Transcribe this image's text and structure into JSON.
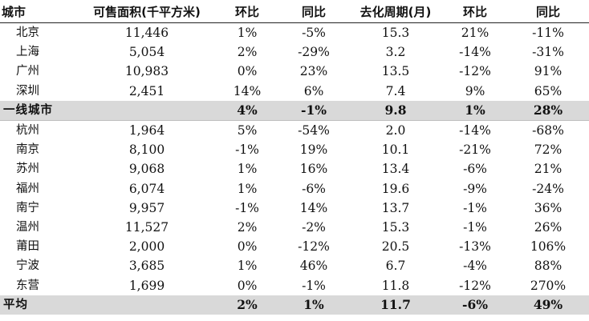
{
  "headers": {
    "city": "城市",
    "area": "可售面积(千平方米)",
    "mom1": "环比",
    "yoy1": "同比",
    "cycle": "去化周期(月)",
    "mom2": "环比",
    "yoy2": "同比"
  },
  "rows": [
    {
      "city": "北京",
      "area": "11,446",
      "mom1": "1%",
      "yoy1": "-5%",
      "cycle": "15.3",
      "mom2": "21%",
      "yoy2": "-11%"
    },
    {
      "city": "上海",
      "area": "5,054",
      "mom1": "2%",
      "yoy1": "-29%",
      "cycle": "3.2",
      "mom2": "-14%",
      "yoy2": "-31%"
    },
    {
      "city": "广州",
      "area": "10,983",
      "mom1": "0%",
      "yoy1": "23%",
      "cycle": "13.5",
      "mom2": "-12%",
      "yoy2": "91%"
    },
    {
      "city": "深圳",
      "area": "2,451",
      "mom1": "14%",
      "yoy1": "6%",
      "cycle": "7.4",
      "mom2": "9%",
      "yoy2": "65%"
    },
    {
      "city": "一线城市",
      "area": "",
      "mom1": "4%",
      "yoy1": "-1%",
      "cycle": "9.8",
      "mom2": "1%",
      "yoy2": "28%"
    },
    {
      "city": "杭州",
      "area": "1,964",
      "mom1": "5%",
      "yoy1": "-54%",
      "cycle": "2.0",
      "mom2": "-14%",
      "yoy2": "-68%"
    },
    {
      "city": "南京",
      "area": "8,100",
      "mom1": "-1%",
      "yoy1": "19%",
      "cycle": "10.1",
      "mom2": "-21%",
      "yoy2": "72%"
    },
    {
      "city": "苏州",
      "area": "9,068",
      "mom1": "1%",
      "yoy1": "16%",
      "cycle": "13.4",
      "mom2": "-6%",
      "yoy2": "21%"
    },
    {
      "city": "福州",
      "area": "6,074",
      "mom1": "1%",
      "yoy1": "-6%",
      "cycle": "19.6",
      "mom2": "-9%",
      "yoy2": "-24%"
    },
    {
      "city": "南宁",
      "area": "9,957",
      "mom1": "-1%",
      "yoy1": "14%",
      "cycle": "13.7",
      "mom2": "-1%",
      "yoy2": "36%"
    },
    {
      "city": "温州",
      "area": "11,527",
      "mom1": "2%",
      "yoy1": "-2%",
      "cycle": "15.3",
      "mom2": "-1%",
      "yoy2": "26%"
    },
    {
      "city": "莆田",
      "area": "2,000",
      "mom1": "0%",
      "yoy1": "-12%",
      "cycle": "20.5",
      "mom2": "-13%",
      "yoy2": "106%"
    },
    {
      "city": "宁波",
      "area": "3,685",
      "mom1": "1%",
      "yoy1": "46%",
      "cycle": "6.7",
      "mom2": "-4%",
      "yoy2": "88%"
    },
    {
      "city": "东营",
      "area": "1,699",
      "mom1": "0%",
      "yoy1": "-1%",
      "cycle": "11.8",
      "mom2": "-12%",
      "yoy2": "270%"
    },
    {
      "city": "平均",
      "area": "",
      "mom1": "2%",
      "yoy1": "1%",
      "cycle": "11.7",
      "mom2": "-6%",
      "yoy2": "49%"
    }
  ]
}
